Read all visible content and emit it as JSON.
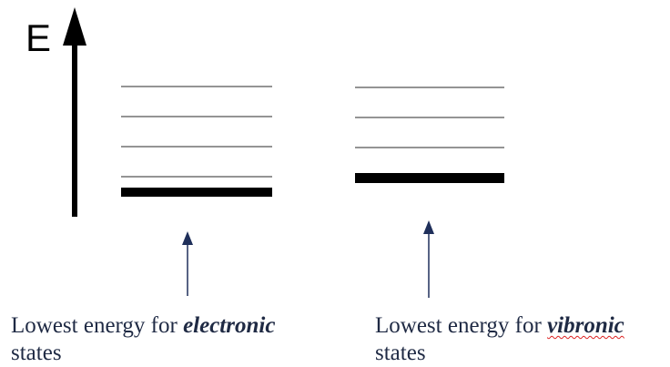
{
  "axis": {
    "label": "E"
  },
  "colors": {
    "levels": "#555555",
    "ground": "#000000",
    "axis": "#000000",
    "pointer": "#1f2f5a",
    "caption_text": "#1f2a44",
    "spell_underline": "#dd2222"
  },
  "ladders": [
    {
      "name": "electronic",
      "ground_level": "thick",
      "upper_levels": 4
    },
    {
      "name": "vibronic",
      "ground_level": "thick",
      "upper_levels": 3
    }
  ],
  "captions": {
    "left": {
      "prefix": "Lowest energy for ",
      "emphasis": "electronic",
      "line2": "states"
    },
    "right": {
      "prefix": "Lowest energy for ",
      "emphasis": "vibronic",
      "line2": "states"
    }
  }
}
